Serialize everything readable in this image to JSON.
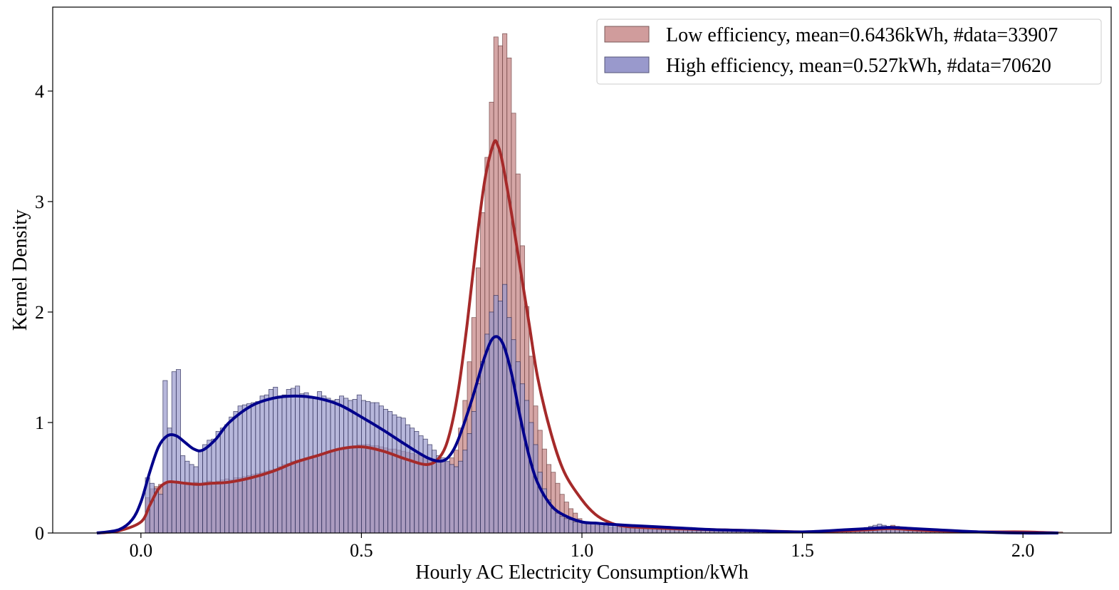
{
  "chart_data": {
    "type": "histogram+kde",
    "xlabel": "Hourly AC Electricity Consumption/kWh",
    "ylabel": "Kernel Density",
    "xlim": [
      -0.2,
      2.2
    ],
    "ylim": [
      0,
      4.76
    ],
    "xticks": [
      0.0,
      0.5,
      1.0,
      1.5,
      2.0
    ],
    "xtick_labels": [
      "0.0",
      "0.5",
      "1.0",
      "1.5",
      "2.0"
    ],
    "yticks": [
      0,
      1,
      2,
      3,
      4
    ],
    "ytick_labels": [
      "0",
      "1",
      "2",
      "3",
      "4"
    ],
    "legend_position": "top-right",
    "bin_start": 0.01,
    "bin_width": 0.01,
    "series": [
      {
        "name": "Low efficiency, mean=0.6436kWh, #data=33907",
        "hist_color": "#d09c9c",
        "kde_color": "#a52a2a",
        "hist": [
          0.32,
          0.4,
          0.42,
          0.44,
          0.45,
          0.46,
          0.47,
          0.46,
          0.45,
          0.45,
          0.45,
          0.46,
          0.45,
          0.46,
          0.47,
          0.46,
          0.47,
          0.48,
          0.49,
          0.48,
          0.5,
          0.5,
          0.51,
          0.52,
          0.53,
          0.54,
          0.55,
          0.56,
          0.57,
          0.58,
          0.6,
          0.62,
          0.63,
          0.65,
          0.66,
          0.67,
          0.68,
          0.69,
          0.7,
          0.71,
          0.72,
          0.73,
          0.74,
          0.75,
          0.76,
          0.77,
          0.78,
          0.79,
          0.8,
          0.8,
          0.8,
          0.79,
          0.79,
          0.78,
          0.77,
          0.76,
          0.76,
          0.75,
          0.74,
          0.73,
          0.72,
          0.71,
          0.7,
          0.69,
          0.68,
          0.67,
          0.66,
          0.65,
          0.64,
          0.68,
          0.75,
          0.95,
          1.2,
          1.55,
          1.95,
          2.4,
          2.9,
          3.4,
          3.9,
          4.49,
          4.41,
          4.52,
          4.3,
          3.8,
          3.25,
          2.6,
          2.05,
          1.6,
          1.15,
          0.93,
          0.76,
          0.62,
          0.55,
          0.45,
          0.35,
          0.28,
          0.22,
          0.18,
          0.13,
          0.1,
          0.09,
          0.08,
          0.07,
          0.06,
          0.06,
          0.05,
          0.05,
          0.05,
          0.04,
          0.04,
          0.04,
          0.04,
          0.04,
          0.04,
          0.04,
          0.04,
          0.03,
          0.03,
          0.03,
          0.03,
          0.03,
          0.03,
          0.03,
          0.03,
          0.03,
          0.02,
          0.02,
          0.02,
          0.02,
          0.02,
          0.02,
          0.02,
          0.02,
          0.02,
          0.02,
          0.02,
          0.01,
          0.01,
          0.01,
          0.01,
          0.01,
          0.01,
          0.01,
          0.01,
          0.01,
          0.01,
          0.01,
          0.01,
          0.01,
          0.01,
          0.01,
          0.01,
          0.01,
          0.01,
          0.01,
          0.01,
          0.01,
          0.01,
          0.01,
          0.01,
          0.02,
          0.02,
          0.03,
          0.03,
          0.04,
          0.04,
          0.05,
          0.05,
          0.06,
          0.07,
          0.06,
          0.05,
          0.05,
          0.04,
          0.04,
          0.03,
          0.03,
          0.02,
          0.02,
          0.02,
          0.01,
          0.01,
          0.01,
          0.01,
          0.01,
          0.01,
          0.01,
          0.01,
          0.01,
          0.01,
          0.01,
          0.01,
          0.01,
          0.01,
          0.01,
          0.01,
          0.01,
          0.01,
          0.01,
          0.01,
          0.01,
          0.01,
          0.01,
          0.01,
          0.01,
          0.01,
          0.01,
          0.01
        ],
        "kde_x": [
          -0.1,
          -0.05,
          0.0,
          0.02,
          0.04,
          0.06,
          0.08,
          0.1,
          0.13,
          0.16,
          0.2,
          0.25,
          0.3,
          0.35,
          0.4,
          0.45,
          0.5,
          0.55,
          0.6,
          0.65,
          0.68,
          0.7,
          0.72,
          0.74,
          0.76,
          0.78,
          0.8,
          0.81,
          0.82,
          0.84,
          0.86,
          0.88,
          0.9,
          0.93,
          0.96,
          1.0,
          1.03,
          1.06,
          1.1,
          1.2,
          1.3,
          1.4,
          1.5,
          1.6,
          1.65,
          1.7,
          1.75,
          1.8,
          1.9,
          2.0,
          2.08
        ],
        "kde_y": [
          0.0,
          0.02,
          0.1,
          0.25,
          0.4,
          0.46,
          0.46,
          0.45,
          0.44,
          0.45,
          0.46,
          0.5,
          0.56,
          0.64,
          0.7,
          0.76,
          0.78,
          0.74,
          0.67,
          0.62,
          0.7,
          0.9,
          1.3,
          1.9,
          2.6,
          3.2,
          3.53,
          3.5,
          3.35,
          2.9,
          2.4,
          1.9,
          1.4,
          0.9,
          0.55,
          0.3,
          0.17,
          0.1,
          0.06,
          0.04,
          0.03,
          0.02,
          0.01,
          0.02,
          0.03,
          0.04,
          0.03,
          0.02,
          0.01,
          0.01,
          0.0
        ]
      },
      {
        "name": "High efficiency, mean=0.527kWh, #data=70620",
        "hist_color": "#9999cc",
        "kde_color": "#00008b",
        "hist": [
          0.5,
          0.45,
          0.4,
          0.35,
          1.38,
          0.95,
          1.46,
          1.48,
          0.7,
          0.65,
          0.62,
          0.6,
          0.75,
          0.8,
          0.84,
          0.85,
          0.92,
          0.95,
          0.98,
          1.05,
          1.1,
          1.15,
          1.16,
          1.17,
          1.18,
          1.19,
          1.24,
          1.25,
          1.3,
          1.32,
          1.24,
          1.25,
          1.3,
          1.31,
          1.33,
          1.26,
          1.27,
          1.22,
          1.23,
          1.28,
          1.24,
          1.22,
          1.2,
          1.21,
          1.24,
          1.22,
          1.2,
          1.21,
          1.25,
          1.2,
          1.19,
          1.18,
          1.18,
          1.15,
          1.12,
          1.1,
          1.07,
          1.05,
          1.04,
          0.98,
          0.95,
          0.92,
          0.88,
          0.85,
          0.8,
          0.75,
          0.7,
          0.68,
          0.65,
          0.62,
          0.6,
          0.65,
          0.75,
          0.9,
          1.1,
          1.35,
          1.55,
          1.8,
          2.0,
          2.15,
          2.1,
          2.25,
          1.95,
          1.75,
          1.55,
          1.35,
          1.2,
          1.0,
          0.8,
          0.55,
          0.4,
          0.3,
          0.22,
          0.18,
          0.15,
          0.13,
          0.12,
          0.1,
          0.1,
          0.09,
          0.09,
          0.09,
          0.08,
          0.08,
          0.08,
          0.08,
          0.08,
          0.07,
          0.07,
          0.07,
          0.07,
          0.07,
          0.07,
          0.06,
          0.06,
          0.06,
          0.06,
          0.06,
          0.06,
          0.05,
          0.05,
          0.05,
          0.05,
          0.05,
          0.04,
          0.04,
          0.04,
          0.04,
          0.03,
          0.03,
          0.03,
          0.03,
          0.02,
          0.02,
          0.02,
          0.02,
          0.02,
          0.02,
          0.01,
          0.01,
          0.01,
          0.01,
          0.01,
          0.01,
          0.01,
          0.01,
          0.01,
          0.01,
          0.01,
          0.01,
          0.01,
          0.01,
          0.01,
          0.01,
          0.01,
          0.01,
          0.01,
          0.01,
          0.02,
          0.02,
          0.03,
          0.03,
          0.04,
          0.05,
          0.06,
          0.07,
          0.08,
          0.07,
          0.06,
          0.05,
          0.05,
          0.04,
          0.04,
          0.03,
          0.03,
          0.02,
          0.02,
          0.02,
          0.01,
          0.01,
          0.01,
          0.01,
          0.01,
          0.01,
          0.01,
          0.01,
          0.01,
          0.01,
          0.01,
          0.01,
          0.01,
          0.01,
          0.01,
          0.01,
          0.01,
          0.01,
          0.01,
          0.01,
          0.01,
          0.01,
          0.01,
          0.01,
          0.01,
          0.01,
          0.01,
          0.01
        ],
        "kde_x": [
          -0.1,
          -0.05,
          -0.02,
          0.0,
          0.02,
          0.04,
          0.06,
          0.08,
          0.1,
          0.12,
          0.14,
          0.17,
          0.2,
          0.25,
          0.3,
          0.35,
          0.4,
          0.45,
          0.5,
          0.55,
          0.6,
          0.65,
          0.68,
          0.7,
          0.72,
          0.75,
          0.78,
          0.8,
          0.82,
          0.84,
          0.86,
          0.88,
          0.9,
          0.93,
          0.96,
          1.0,
          1.03,
          1.06,
          1.1,
          1.2,
          1.3,
          1.4,
          1.5,
          1.6,
          1.65,
          1.7,
          1.75,
          1.8,
          1.9,
          2.0,
          2.08
        ],
        "kde_y": [
          0.0,
          0.03,
          0.12,
          0.28,
          0.55,
          0.78,
          0.88,
          0.88,
          0.82,
          0.76,
          0.75,
          0.85,
          1.0,
          1.15,
          1.22,
          1.24,
          1.22,
          1.16,
          1.05,
          0.93,
          0.8,
          0.68,
          0.65,
          0.7,
          0.85,
          1.2,
          1.6,
          1.77,
          1.72,
          1.45,
          1.05,
          0.7,
          0.45,
          0.25,
          0.16,
          0.1,
          0.09,
          0.08,
          0.07,
          0.05,
          0.03,
          0.02,
          0.01,
          0.03,
          0.04,
          0.05,
          0.04,
          0.03,
          0.01,
          0.0,
          0.0
        ]
      }
    ]
  }
}
